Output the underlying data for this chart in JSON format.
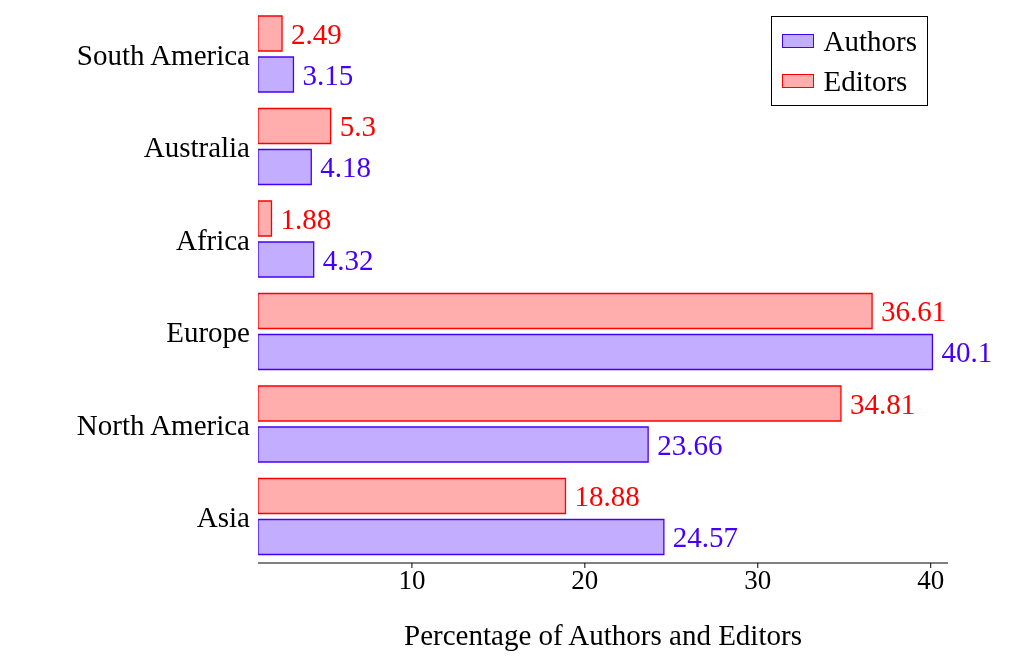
{
  "chart_data": {
    "type": "bar",
    "orientation": "horizontal",
    "xlabel": "Percentage of Authors and Editors",
    "categories": [
      "South America",
      "Australia",
      "Africa",
      "Europe",
      "North America",
      "Asia"
    ],
    "series": [
      {
        "name": "Authors",
        "color": "#4400ff",
        "values": [
          3.15,
          4.18,
          4.32,
          40.1,
          23.66,
          24.57
        ]
      },
      {
        "name": "Editors",
        "color": "#ff0000",
        "values": [
          2.49,
          5.3,
          1.88,
          36.61,
          34.81,
          18.88
        ]
      }
    ],
    "xlim": [
      1.1,
      41
    ],
    "xticks": [
      10,
      20,
      30,
      40
    ],
    "data_labels": true,
    "legend": "top right",
    "grid": false
  }
}
